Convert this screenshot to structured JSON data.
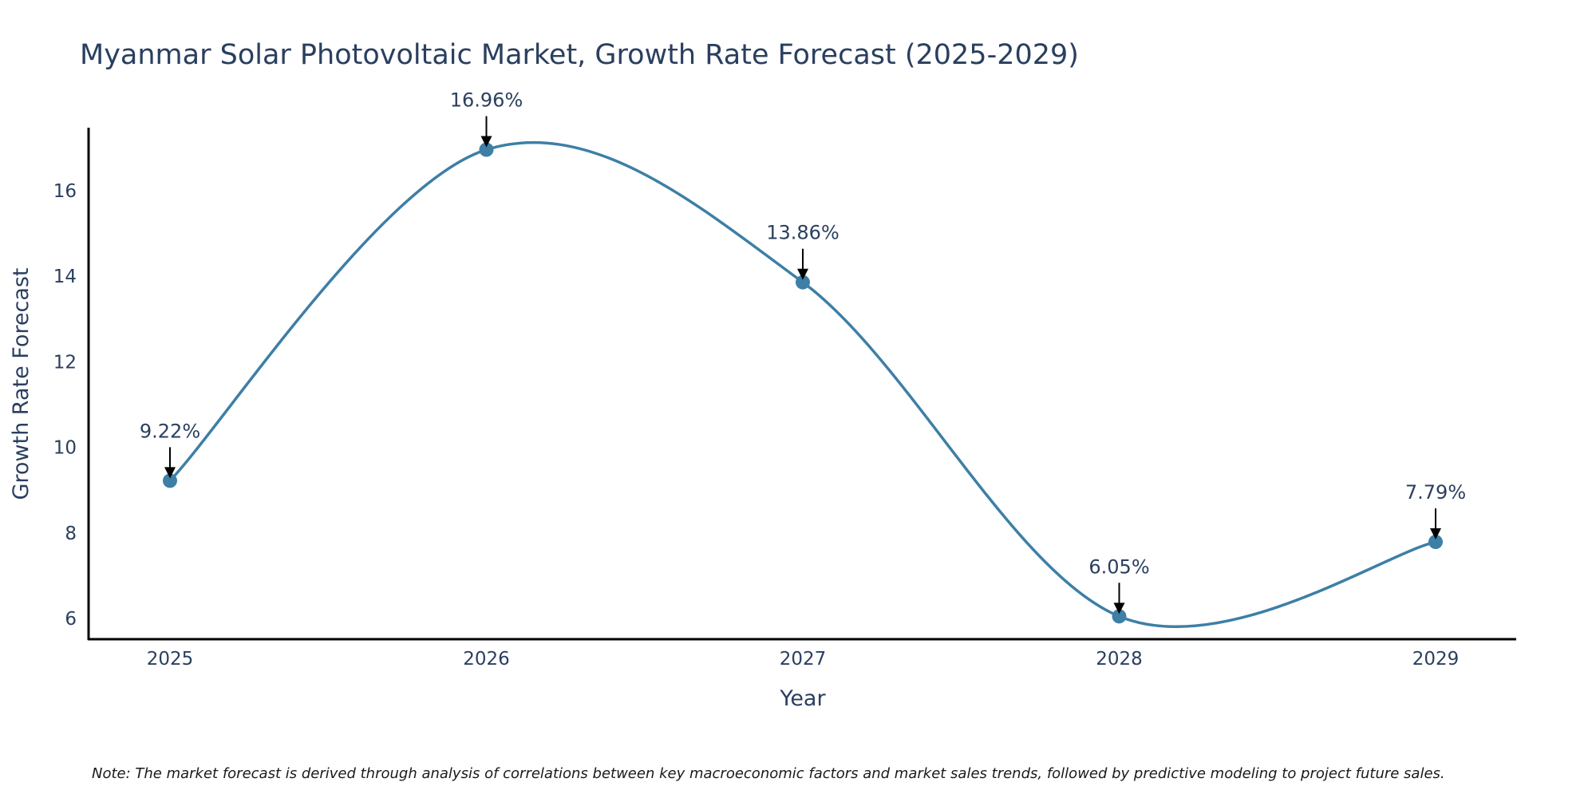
{
  "chart_data": {
    "type": "line",
    "title": "Myanmar Solar Photovoltaic Market, Growth Rate Forecast (2025-2029)",
    "xlabel": "Year",
    "ylabel": "Growth Rate Forecast",
    "categories": [
      "2025",
      "2026",
      "2027",
      "2028",
      "2029"
    ],
    "values": [
      9.22,
      16.96,
      13.86,
      6.05,
      7.79
    ],
    "data_labels": [
      "9.22%",
      "16.96%",
      "13.86%",
      "6.05%",
      "7.79%"
    ],
    "y_ticks": [
      "6",
      "8",
      "10",
      "12",
      "14",
      "16"
    ],
    "ylim": [
      5.5,
      17.5
    ],
    "grid": false,
    "line_shape": "spline",
    "line_color": "#3d7fa6",
    "marker_color": "#3d7fa6",
    "note": "Note: The market forecast is derived through analysis of correlations between key macroeconomic factors and market sales trends, followed by predictive modeling to project future sales."
  }
}
